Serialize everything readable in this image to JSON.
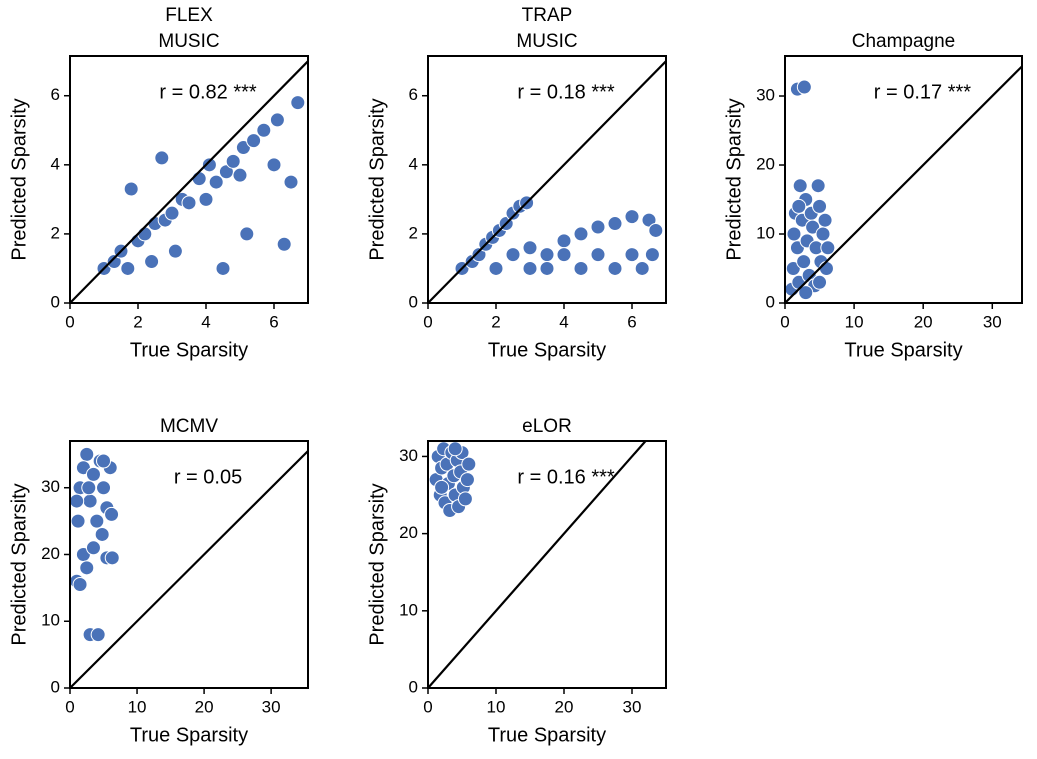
{
  "chart_data": [
    {
      "type": "scatter",
      "title": [
        "FLEX",
        "MUSIC"
      ],
      "annotation": "r = 0.82 ***",
      "xlabel": "True Sparsity",
      "ylabel": "Predicted Sparsity",
      "color": "#4a72b8",
      "diagonal": true,
      "xlim": [
        0,
        7
      ],
      "ylim": [
        0,
        7.15
      ],
      "xticks": [
        0,
        2,
        4,
        6
      ],
      "yticks": [
        0,
        2,
        4,
        6
      ],
      "x": [
        1.0,
        1.3,
        1.5,
        1.7,
        1.8,
        2.0,
        2.2,
        2.4,
        2.5,
        2.7,
        2.8,
        3.0,
        3.1,
        3.3,
        3.5,
        3.8,
        4.0,
        4.1,
        4.3,
        4.5,
        4.6,
        4.8,
        5.0,
        5.1,
        5.2,
        5.4,
        5.7,
        6.0,
        6.1,
        6.3,
        6.5,
        6.7
      ],
      "values": [
        1.0,
        1.2,
        1.5,
        1.0,
        3.3,
        1.8,
        2.0,
        1.2,
        2.3,
        4.2,
        2.4,
        2.6,
        1.5,
        3.0,
        2.9,
        3.6,
        3.0,
        4.0,
        3.5,
        1.0,
        3.8,
        4.1,
        3.7,
        4.5,
        2.0,
        4.7,
        5.0,
        4.0,
        5.3,
        1.7,
        3.5,
        5.8
      ]
    },
    {
      "type": "scatter",
      "title": [
        "TRAP",
        "MUSIC"
      ],
      "annotation": "r = 0.18 ***",
      "xlabel": "True Sparsity",
      "ylabel": "Predicted Sparsity",
      "color": "#4a72b8",
      "diagonal": true,
      "xlim": [
        0,
        7
      ],
      "ylim": [
        0,
        7.15
      ],
      "xticks": [
        0,
        2,
        4,
        6
      ],
      "yticks": [
        0,
        2,
        4,
        6
      ],
      "x": [
        1.0,
        1.3,
        1.5,
        1.7,
        1.9,
        2.1,
        2.3,
        2.5,
        2.7,
        2.9,
        2.0,
        2.5,
        3.0,
        3.0,
        3.5,
        3.5,
        4.0,
        4.0,
        4.5,
        4.5,
        5.0,
        5.0,
        5.5,
        5.5,
        6.0,
        6.0,
        6.3,
        6.5,
        6.7,
        6.6
      ],
      "values": [
        1.0,
        1.2,
        1.4,
        1.7,
        1.9,
        2.1,
        2.3,
        2.6,
        2.8,
        2.9,
        1.0,
        1.4,
        1.0,
        1.6,
        1.4,
        1.0,
        1.8,
        1.4,
        1.0,
        2.0,
        2.2,
        1.4,
        1.0,
        2.3,
        2.5,
        1.4,
        1.0,
        2.4,
        2.1,
        1.4
      ]
    },
    {
      "type": "scatter",
      "title": [
        "Champagne"
      ],
      "annotation": "r = 0.17 ***",
      "xlabel": "True Sparsity",
      "ylabel": "Predicted Sparsity",
      "color": "#4a72b8",
      "diagonal": true,
      "xlim": [
        0,
        34.3
      ],
      "ylim": [
        0,
        35.8
      ],
      "xticks": [
        0,
        10,
        20,
        30
      ],
      "yticks": [
        0,
        10,
        20,
        30
      ],
      "x": [
        1.8,
        2.8,
        1.0,
        1.2,
        1.3,
        1.5,
        1.8,
        2.0,
        2.2,
        2.5,
        2.7,
        3.0,
        3.2,
        3.5,
        3.8,
        4.0,
        4.3,
        4.5,
        4.8,
        5.0,
        5.2,
        5.5,
        5.8,
        6.0,
        6.2,
        2.0,
        3.0,
        5.0
      ],
      "values": [
        31.0,
        31.3,
        2.0,
        5.0,
        10.0,
        13.0,
        8.0,
        3.0,
        17.0,
        12.0,
        6.0,
        15.0,
        9.0,
        4.0,
        13.0,
        11.0,
        2.5,
        8.0,
        17.0,
        14.0,
        6.0,
        10.0,
        12.0,
        5.0,
        8.0,
        14.0,
        1.5,
        3.0
      ]
    },
    {
      "type": "scatter",
      "title": [
        "MCMV"
      ],
      "annotation": "r = 0.05",
      "xlabel": "True Sparsity",
      "ylabel": "Predicted Sparsity",
      "color": "#4a72b8",
      "diagonal": true,
      "xlim": [
        0,
        35.5
      ],
      "ylim": [
        0,
        37
      ],
      "xticks": [
        0,
        10,
        20,
        30
      ],
      "yticks": [
        0,
        10,
        20,
        30
      ],
      "x": [
        1.0,
        1.5,
        2.0,
        2.5,
        1.2,
        1.5,
        2.0,
        3.0,
        3.5,
        4.0,
        4.5,
        5.0,
        5.5,
        6.0,
        6.2,
        3.0,
        4.2,
        5.5,
        6.3,
        4.8,
        2.5,
        3.5,
        1.0,
        5.0,
        2.8
      ],
      "values": [
        16.0,
        15.5,
        20.0,
        35.0,
        25.0,
        30.0,
        33.0,
        28.0,
        32.0,
        25.0,
        34.0,
        30.0,
        27.0,
        33.0,
        26.0,
        8.0,
        8.0,
        19.5,
        19.5,
        23.0,
        18.0,
        21.0,
        28.0,
        34.0,
        30.0
      ]
    },
    {
      "type": "scatter",
      "title": [
        "eLOR"
      ],
      "annotation": "r = 0.16 ***",
      "xlabel": "True Sparsity",
      "ylabel": "Predicted Sparsity",
      "color": "#4a72b8",
      "diagonal": true,
      "xlim": [
        0,
        35
      ],
      "ylim": [
        0,
        32
      ],
      "xticks": [
        0,
        10,
        20,
        30
      ],
      "yticks": [
        0,
        10,
        20,
        30
      ],
      "x": [
        1.2,
        1.5,
        1.8,
        2.0,
        2.3,
        2.5,
        2.8,
        3.0,
        3.2,
        3.5,
        3.8,
        4.0,
        4.3,
        4.5,
        4.8,
        5.0,
        5.2,
        5.5,
        5.8,
        6.0,
        2.0,
        4.0
      ],
      "values": [
        27.0,
        30.0,
        25.0,
        28.5,
        31.0,
        24.0,
        29.0,
        26.5,
        23.0,
        30.5,
        27.5,
        25.0,
        29.5,
        23.5,
        28.0,
        30.5,
        26.0,
        24.5,
        27.0,
        29.0,
        26.0,
        31.0
      ]
    }
  ]
}
